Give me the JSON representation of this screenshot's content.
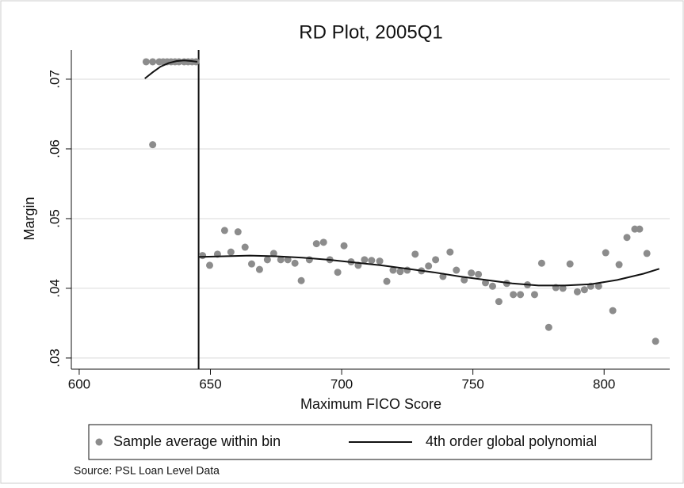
{
  "chart_data": {
    "type": "scatter",
    "title": "RD Plot, 2005Q1",
    "x_label": "Maximum FICO Score",
    "y_label": "Margin",
    "source": "Source: PSL Loan Level Data",
    "xlim": [
      597,
      825
    ],
    "ylim": [
      0.0284,
      0.0742
    ],
    "xticks": [
      600,
      650,
      700,
      750,
      800
    ],
    "yticks": [
      {
        "value": 0.03,
        "label": ".03"
      },
      {
        "value": 0.04,
        "label": ".04"
      },
      {
        "value": 0.05,
        "label": ".05"
      },
      {
        "value": 0.06,
        "label": ".06"
      },
      {
        "value": 0.07,
        "label": ".07"
      }
    ],
    "grid": true,
    "cutoff": 645.5,
    "series": [
      {
        "name": "Sample average within bin",
        "type": "scatter",
        "color": "#8c8c8c",
        "x": [
          625.5,
          628,
          630.5,
          632,
          633.5,
          635,
          636.5,
          638,
          640,
          641.5,
          643,
          644.5,
          628,
          647,
          649.7,
          652.7,
          655.4,
          657.8,
          660.5,
          663.2,
          665.7,
          668.7,
          671.7,
          674.1,
          676.8,
          679.5,
          682.2,
          684.6,
          687.7,
          690.4,
          693.1,
          695.5,
          698.5,
          700.9,
          703.6,
          706.3,
          708.7,
          711.4,
          714.5,
          717.2,
          719.6,
          722.3,
          725,
          728,
          730.4,
          733.1,
          735.8,
          738.6,
          741.3,
          743.7,
          746.7,
          749.4,
          752.1,
          754.8,
          757.5,
          759.9,
          762.9,
          765.4,
          768.1,
          770.8,
          773.5,
          776.2,
          778.9,
          781.6,
          784.3,
          787,
          789.8,
          792.5,
          794.9,
          797.9,
          800.6,
          803.3,
          805.7,
          808.7,
          811.7,
          813.5,
          816.3,
          819.6
        ],
        "values": [
          0.0725,
          0.0725,
          0.0725,
          0.0725,
          0.0725,
          0.0725,
          0.0725,
          0.0725,
          0.0725,
          0.0725,
          0.0725,
          0.0725,
          0.0606,
          0.0447,
          0.0433,
          0.0449,
          0.0483,
          0.0452,
          0.0481,
          0.0459,
          0.0435,
          0.0427,
          0.0441,
          0.045,
          0.0441,
          0.0441,
          0.0436,
          0.0411,
          0.0441,
          0.0464,
          0.0466,
          0.0441,
          0.0423,
          0.0461,
          0.0438,
          0.0433,
          0.0441,
          0.044,
          0.0439,
          0.041,
          0.0426,
          0.0424,
          0.0426,
          0.0449,
          0.0425,
          0.0432,
          0.0441,
          0.0417,
          0.0452,
          0.0426,
          0.0412,
          0.0422,
          0.042,
          0.0408,
          0.0403,
          0.0381,
          0.0407,
          0.0391,
          0.0391,
          0.0405,
          0.0391,
          0.0436,
          0.0344,
          0.0401,
          0.04,
          0.0435,
          0.0395,
          0.0398,
          0.0403,
          0.0403,
          0.0451,
          0.0368,
          0.0434,
          0.0473,
          0.0485,
          0.0485,
          0.045,
          0.0324
        ]
      },
      {
        "name": "4th order global polynomial",
        "type": "line",
        "color": "#111111",
        "x": [
          625,
          628,
          631,
          634,
          637,
          640,
          643,
          645,
          645.5,
          645.5,
          655,
          665,
          675,
          685,
          695,
          705,
          715,
          725,
          735,
          745,
          755,
          765,
          775,
          785,
          795,
          805,
          815,
          821
        ],
        "values": [
          0.0701,
          0.071,
          0.0718,
          0.0723,
          0.0726,
          0.0727,
          0.0726,
          0.0725,
          null,
          0.0445,
          0.0446,
          0.0447,
          0.0446,
          0.0444,
          0.0441,
          0.0437,
          0.0433,
          0.0428,
          0.0423,
          0.0417,
          0.0412,
          0.0407,
          0.0404,
          0.0404,
          0.0406,
          0.0412,
          0.0421,
          0.0428
        ]
      }
    ]
  }
}
